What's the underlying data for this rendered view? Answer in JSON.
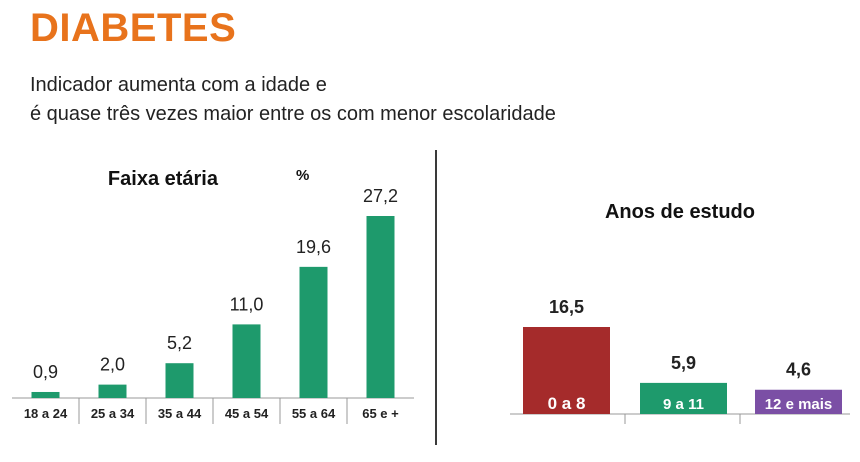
{
  "title": "DIABETES",
  "subtitle_line1": "Indicador aumenta com a idade e",
  "subtitle_line2": "é quase três vezes maior entre os com menor escolaridade",
  "chart_data": [
    {
      "type": "bar",
      "title": "Faixa etária",
      "unit": "%",
      "categories": [
        "18 a 24",
        "25 a 34",
        "35 a 44",
        "45 a 54",
        "55 a 64",
        "65 e +"
      ],
      "values": [
        0.9,
        2.0,
        5.2,
        11.0,
        19.6,
        27.2
      ],
      "value_labels": [
        "0,9",
        "2,0",
        "5,2",
        "11,0",
        "19,6",
        "27,2"
      ],
      "color": "#1E9A6C",
      "ylim": [
        0,
        30
      ]
    },
    {
      "type": "bar",
      "title": "Anos de estudo",
      "categories": [
        "0 a 8",
        "9 a 11",
        "12 e mais"
      ],
      "values": [
        16.5,
        5.9,
        4.6
      ],
      "value_labels": [
        "16,5",
        "5,9",
        "4,6"
      ],
      "colors": [
        "#A52B2B",
        "#1E9A6C",
        "#7B4FA5"
      ],
      "ylim": [
        0,
        30
      ]
    }
  ]
}
